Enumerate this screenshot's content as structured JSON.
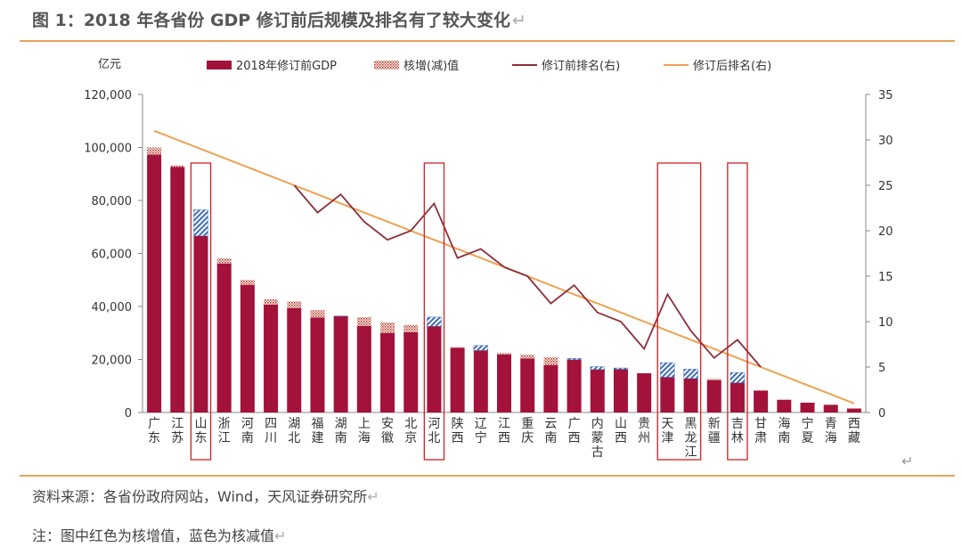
{
  "title": "图 1：2018 年各省份 GDP 修订前后规模及排名有了较大变化",
  "source": "资料来源：各省份政府网站，Wind，天风证券研究所",
  "note": "注：图中红色为核增值，蓝色为核减值",
  "return_mark": "↵",
  "chart_data": {
    "type": "bar",
    "unit_label": "亿元",
    "categories": [
      "广东",
      "江苏",
      "山东",
      "浙江",
      "河南",
      "四川",
      "湖北",
      "福建",
      "湖南",
      "上海",
      "安徽",
      "北京",
      "河北",
      "陕西",
      "辽宁",
      "江西",
      "重庆",
      "云南",
      "广西",
      "内蒙古",
      "山西",
      "贵州",
      "天津",
      "黑龙江",
      "新疆",
      "吉林",
      "甘肃",
      "海南",
      "宁夏",
      "青海",
      "西藏"
    ],
    "highlighted": [
      "山东",
      "河北",
      "天津",
      "黑龙江",
      "吉林"
    ],
    "left_axis": {
      "min": 0,
      "max": 120000,
      "ticks": [
        0,
        20000,
        40000,
        60000,
        80000,
        100000,
        120000
      ],
      "tick_labels": [
        "0",
        "20,000",
        "40,000",
        "60,000",
        "80,000",
        "100,000",
        "120,000"
      ]
    },
    "right_axis": {
      "min": 0,
      "max": 35,
      "ticks": [
        0,
        5,
        10,
        15,
        20,
        25,
        30,
        35
      ],
      "tick_labels": [
        "0",
        "5",
        "10",
        "15",
        "20",
        "25",
        "30",
        "35"
      ]
    },
    "series": [
      {
        "name": "2018年修订前GDP",
        "kind": "bar",
        "color": "#a3123a",
        "values": [
          97300,
          92600,
          76500,
          56200,
          48100,
          40700,
          39400,
          35800,
          36400,
          32700,
          30000,
          30300,
          36000,
          24400,
          25300,
          21900,
          20400,
          17900,
          20400,
          17300,
          16800,
          14800,
          18800,
          16400,
          12200,
          15100,
          8200,
          4800,
          3700,
          2900,
          1500
        ]
      },
      {
        "name": "核增(减)值",
        "kind": "adjustment",
        "values": [
          2700,
          600,
          -9900,
          2000,
          1900,
          2000,
          2500,
          2800,
          -100,
          3300,
          4000,
          2800,
          -3500,
          300,
          -1900,
          500,
          1400,
          3000,
          -500,
          -1100,
          -500,
          0,
          -5500,
          -3600,
          500,
          -3900,
          200,
          0,
          0,
          0,
          0
        ]
      },
      {
        "name": "修订前排名(右)",
        "kind": "line",
        "color": "#8b2f3a",
        "values": [
          null,
          null,
          null,
          null,
          null,
          null,
          25,
          22,
          24,
          21,
          19,
          20,
          23,
          17,
          18,
          16,
          15,
          12,
          14,
          11,
          10,
          7,
          13,
          9,
          6,
          8,
          5,
          null,
          null,
          null,
          null
        ]
      },
      {
        "name": "修订后排名(右)",
        "kind": "line",
        "color": "#f0a050",
        "values": [
          31,
          30,
          29,
          28,
          27,
          26,
          25,
          24,
          23,
          22,
          21,
          20,
          19,
          18,
          17,
          16,
          15,
          14,
          13,
          12,
          11,
          10,
          9,
          8,
          7,
          6,
          5,
          4,
          3,
          2,
          1
        ]
      }
    ],
    "legend": [
      {
        "label": "2018年修订前GDP",
        "swatch": "bar"
      },
      {
        "label": "核增(减)值",
        "swatch": "hatch"
      },
      {
        "label": "修订前排名(右)",
        "swatch": "line-dark"
      },
      {
        "label": "修订后排名(右)",
        "swatch": "line-orange"
      }
    ],
    "colors": {
      "bar": "#a3123a",
      "increase": "#b5332e",
      "decrease": "#3f6db5",
      "line_before": "#8b2f3a",
      "line_after": "#f0a050",
      "highlight_box": "#d11f26"
    }
  }
}
